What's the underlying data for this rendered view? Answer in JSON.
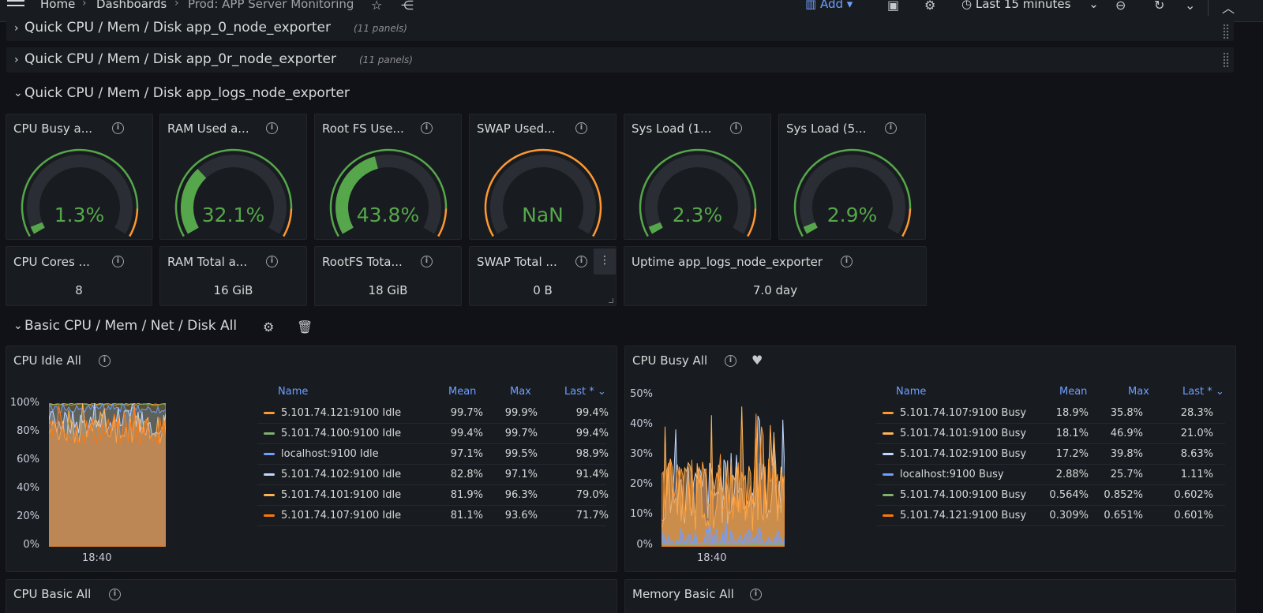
{
  "topbar": {
    "breadcrumbs": [
      "Home",
      "Dashboards",
      "Prod: APP Server Monitoring"
    ],
    "add_label": "Add",
    "time_range": "Last 15 minutes"
  },
  "rows": {
    "row1": {
      "title": "Quick CPU / Mem / Disk app_0_node_exporter",
      "count": "(11 panels)"
    },
    "row2": {
      "title": "Quick CPU / Mem / Disk app_0r_node_exporter",
      "count": "(11 panels)"
    },
    "row3": {
      "title": "Quick CPU / Mem / Disk app_logs_node_exporter"
    },
    "row4": {
      "title": "Basic CPU / Mem / Net / Disk All"
    }
  },
  "gauges": [
    {
      "title": "CPU Busy a...",
      "value": "1.3%",
      "fraction": 0.013,
      "color": "#56a64b"
    },
    {
      "title": "RAM Used a...",
      "value": "32.1%",
      "fraction": 0.321,
      "color": "#56a64b"
    },
    {
      "title": "Root FS Use...",
      "value": "43.8%",
      "fraction": 0.438,
      "color": "#56a64b"
    },
    {
      "title": "SWAP Used...",
      "value": "NaN",
      "fraction": 0,
      "color": "#56a64b"
    },
    {
      "title": "Sys Load (1...",
      "value": "2.3%",
      "fraction": 0.023,
      "color": "#56a64b"
    },
    {
      "title": "Sys Load (5...",
      "value": "2.9%",
      "fraction": 0.029,
      "color": "#56a64b"
    }
  ],
  "stats": [
    {
      "title": "CPU Cores ...",
      "value": "8"
    },
    {
      "title": "RAM Total a...",
      "value": "16 GiB"
    },
    {
      "title": "RootFS Tota...",
      "value": "18 GiB"
    },
    {
      "title": "SWAP Total ...",
      "value": "0 B"
    },
    {
      "title": "Uptime app_logs_node_exporter",
      "value": "7.0 day"
    }
  ],
  "cpu_idle": {
    "title": "CPU Idle All",
    "y_ticks": [
      "100%",
      "80%",
      "60%",
      "40%",
      "20%",
      "0%"
    ],
    "x_tick": "18:40",
    "headers": {
      "name": "Name",
      "mean": "Mean",
      "max": "Max",
      "last": "Last *"
    },
    "legend": [
      {
        "name": "5.101.74.121:9100 Idle",
        "mean": "99.7%",
        "max": "99.9%",
        "last": "99.4%",
        "color": "#ff9830"
      },
      {
        "name": "5.101.74.100:9100 Idle",
        "mean": "99.4%",
        "max": "99.7%",
        "last": "99.4%",
        "color": "#7eb26d"
      },
      {
        "name": "localhost:9100 Idle",
        "mean": "97.1%",
        "max": "99.5%",
        "last": "98.9%",
        "color": "#6e9fff"
      },
      {
        "name": "5.101.74.102:9100 Idle",
        "mean": "82.8%",
        "max": "97.1%",
        "last": "91.4%",
        "color": "#c0d8ff"
      },
      {
        "name": "5.101.74.101:9100 Idle",
        "mean": "81.9%",
        "max": "96.3%",
        "last": "79.0%",
        "color": "#ffb357"
      },
      {
        "name": "5.101.74.107:9100 Idle",
        "mean": "81.1%",
        "max": "93.6%",
        "last": "71.7%",
        "color": "#ff780a"
      }
    ]
  },
  "cpu_busy": {
    "title": "CPU Busy All",
    "y_ticks": [
      "50%",
      "40%",
      "30%",
      "20%",
      "10%",
      "0%"
    ],
    "x_tick": "18:40",
    "headers": {
      "name": "Name",
      "mean": "Mean",
      "max": "Max",
      "last": "Last *"
    },
    "legend": [
      {
        "name": "5.101.74.107:9100 Busy",
        "mean": "18.9%",
        "max": "35.8%",
        "last": "28.3%",
        "color": "#ff9830"
      },
      {
        "name": "5.101.74.101:9100 Busy",
        "mean": "18.1%",
        "max": "46.9%",
        "last": "21.0%",
        "color": "#ffb357"
      },
      {
        "name": "5.101.74.102:9100 Busy",
        "mean": "17.2%",
        "max": "39.8%",
        "last": "8.63%",
        "color": "#c0d8ff"
      },
      {
        "name": "localhost:9100 Busy",
        "mean": "2.88%",
        "max": "25.7%",
        "last": "1.11%",
        "color": "#6e9fff"
      },
      {
        "name": "5.101.74.100:9100 Busy",
        "mean": "0.564%",
        "max": "0.852%",
        "last": "0.602%",
        "color": "#7eb26d"
      },
      {
        "name": "5.101.74.121:9100 Busy",
        "mean": "0.309%",
        "max": "0.651%",
        "last": "0.601%",
        "color": "#ff780a"
      }
    ]
  },
  "bottom": {
    "cpu_basic": "CPU Basic All",
    "memory_basic": "Memory Basic All"
  }
}
